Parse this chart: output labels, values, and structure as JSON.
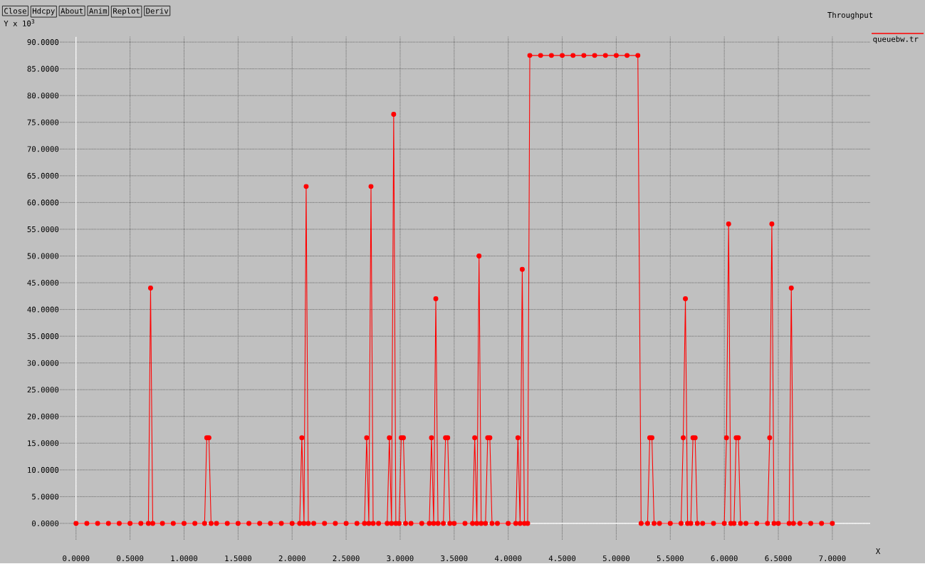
{
  "chart_data": {
    "type": "line",
    "title": "Throughput",
    "xlabel": "X",
    "ylabel": "Y x 10$^{3}$",
    "annotations": [
      "Close",
      "Hdcpy",
      "About",
      "Anim",
      "Replot",
      "Deriv"
    ],
    "xlim": [
      -0.15,
      7.35
    ],
    "ylim": [
      -3,
      91
    ],
    "xticks": [
      {
        "value": 0,
        "label": "0.0000"
      },
      {
        "value": 0.5,
        "label": "0.5000"
      },
      {
        "value": 1,
        "label": "1.0000"
      },
      {
        "value": 1.5,
        "label": "1.5000"
      },
      {
        "value": 2,
        "label": "2.0000"
      },
      {
        "value": 2.5,
        "label": "2.5000"
      },
      {
        "value": 3,
        "label": "3.0000"
      },
      {
        "value": 3.5,
        "label": "3.5000"
      },
      {
        "value": 4,
        "label": "4.0000"
      },
      {
        "value": 4.5,
        "label": "4.5000"
      },
      {
        "value": 5,
        "label": "5.0000"
      },
      {
        "value": 5.5,
        "label": "5.5000"
      },
      {
        "value": 6,
        "label": "6.0000"
      },
      {
        "value": 6.5,
        "label": "6.5000"
      },
      {
        "value": 7,
        "label": "7.0000"
      }
    ],
    "yticks": [
      {
        "value": 0,
        "label": "0.0000"
      },
      {
        "value": 5,
        "label": "5.0000"
      },
      {
        "value": 10,
        "label": "10.0000"
      },
      {
        "value": 15,
        "label": "15.0000"
      },
      {
        "value": 20,
        "label": "20.0000"
      },
      {
        "value": 25,
        "label": "25.0000"
      },
      {
        "value": 30,
        "label": "30.0000"
      },
      {
        "value": 35,
        "label": "35.0000"
      },
      {
        "value": 40,
        "label": "40.0000"
      },
      {
        "value": 45,
        "label": "45.0000"
      },
      {
        "value": 50,
        "label": "50.0000"
      },
      {
        "value": 55,
        "label": "55.0000"
      },
      {
        "value": 60,
        "label": "60.0000"
      },
      {
        "value": 65,
        "label": "65.0000"
      },
      {
        "value": 70,
        "label": "70.0000"
      },
      {
        "value": 75,
        "label": "75.0000"
      },
      {
        "value": 80,
        "label": "80.0000"
      },
      {
        "value": 85,
        "label": "85.0000"
      },
      {
        "value": 90,
        "label": "90.0000"
      }
    ],
    "grid": true,
    "legend": "top right",
    "marker": "circle",
    "line_style": "solid",
    "series": [
      {
        "name": "queuebw.tr",
        "color": "#ff0000",
        "x": [
          0,
          0.1,
          0.2,
          0.3,
          0.4,
          0.5,
          0.6,
          0.67,
          0.69,
          0.71,
          0.8,
          0.9,
          1.0,
          1.1,
          1.19,
          1.21,
          1.23,
          1.25,
          1.3,
          1.4,
          1.5,
          1.6,
          1.7,
          1.8,
          1.9,
          2.0,
          2.07,
          2.09,
          2.11,
          2.13,
          2.15,
          2.2,
          2.3,
          2.4,
          2.5,
          2.6,
          2.67,
          2.69,
          2.71,
          2.73,
          2.75,
          2.8,
          2.88,
          2.9,
          2.92,
          2.94,
          2.96,
          2.99,
          3.01,
          3.03,
          3.05,
          3.1,
          3.2,
          3.27,
          3.29,
          3.31,
          3.33,
          3.35,
          3.4,
          3.42,
          3.44,
          3.46,
          3.5,
          3.6,
          3.67,
          3.69,
          3.71,
          3.73,
          3.75,
          3.79,
          3.81,
          3.83,
          3.85,
          3.9,
          4.0,
          4.07,
          4.09,
          4.11,
          4.13,
          4.15,
          4.18,
          4.2,
          4.3,
          4.4,
          4.5,
          4.6,
          4.7,
          4.8,
          4.9,
          5.0,
          5.1,
          5.2,
          5.23,
          5.29,
          5.31,
          5.33,
          5.35,
          5.4,
          5.5,
          5.6,
          5.62,
          5.64,
          5.66,
          5.69,
          5.71,
          5.73,
          5.75,
          5.8,
          5.9,
          6.0,
          6.02,
          6.04,
          6.06,
          6.09,
          6.11,
          6.13,
          6.15,
          6.2,
          6.3,
          6.4,
          6.42,
          6.44,
          6.46,
          6.5,
          6.6,
          6.62,
          6.64,
          6.7,
          6.8,
          6.9,
          7.0
        ],
        "values": [
          0,
          0,
          0,
          0,
          0,
          0,
          0,
          0,
          44,
          0,
          0,
          0,
          0,
          0,
          0,
          16,
          16,
          0,
          0,
          0,
          0,
          0,
          0,
          0,
          0,
          0,
          0,
          16,
          0,
          63,
          0,
          0,
          0,
          0,
          0,
          0,
          0,
          16,
          0,
          63,
          0,
          0,
          0,
          16,
          0,
          76.5,
          0,
          0,
          16,
          16,
          0,
          0,
          0,
          0,
          16,
          0,
          42,
          0,
          0,
          16,
          16,
          0,
          0,
          0,
          0,
          16,
          0,
          50,
          0,
          0,
          16,
          16,
          0,
          0,
          0,
          0,
          16,
          0,
          47.5,
          0,
          0,
          87.5,
          87.5,
          87.5,
          87.5,
          87.5,
          87.5,
          87.5,
          87.5,
          87.5,
          87.5,
          87.5,
          0,
          0,
          16,
          16,
          0,
          0,
          0,
          0,
          16,
          42,
          0,
          0,
          16,
          16,
          0,
          0,
          0,
          0,
          16,
          56,
          0,
          0,
          16,
          16,
          0,
          0,
          0,
          0,
          16,
          56,
          0,
          0,
          0,
          44,
          0,
          0,
          0,
          0,
          0
        ]
      }
    ]
  }
}
